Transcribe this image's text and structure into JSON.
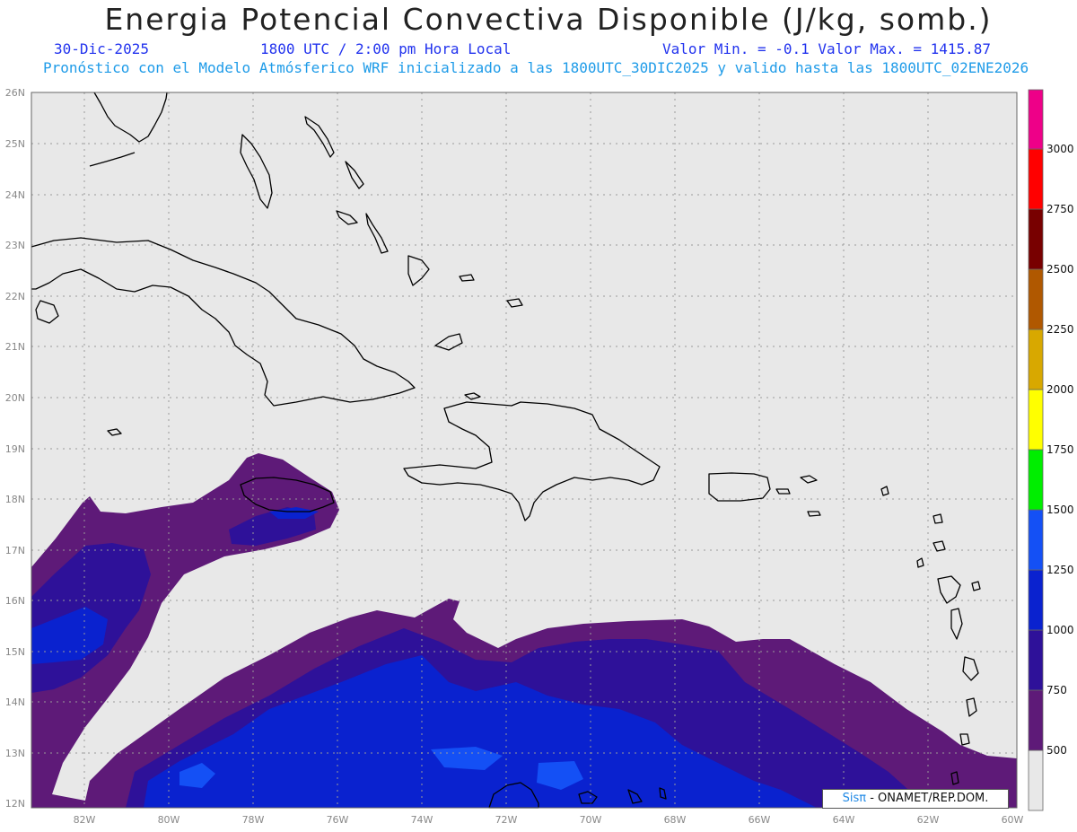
{
  "header": {
    "title": "Energia Potencial Convectiva Disponible (J/kg, somb.)",
    "date": "30-Dic-2025",
    "time": "1800 UTC / 2:00 pm Hora Local",
    "minmax": "Valor Min. = -0.1  Valor Max. = 1415.87",
    "forecast": "Pronóstico con el Modelo Atmósferico WRF inicializado a las 1800UTC_30DIC2025 y valido hasta las  1800UTC_02ENE2026"
  },
  "map": {
    "lat_ticks": [
      "26N",
      "25N",
      "24N",
      "23N",
      "22N",
      "21N",
      "20N",
      "19N",
      "18N",
      "17N",
      "16N",
      "15N",
      "14N",
      "13N",
      "12N"
    ],
    "lon_ticks": [
      "82W",
      "80W",
      "78W",
      "76W",
      "74W",
      "72W",
      "70W",
      "68W",
      "66W",
      "64W",
      "62W",
      "60W"
    ],
    "background_color": "#e8e8e8",
    "gridlines": true
  },
  "legend": {
    "levels": [
      "500",
      "750",
      "1000",
      "1250",
      "1500",
      "1750",
      "2000",
      "2250",
      "2500",
      "2750",
      "3000"
    ],
    "colors": [
      "#e8e8e8",
      "#5e1a78",
      "#2e1199",
      "#0a22cf",
      "#1450f5",
      "#00ee00",
      "#ffff00",
      "#d8a800",
      "#b05800",
      "#780000",
      "#ff0000",
      "#ee0088"
    ]
  },
  "credit": {
    "sis": "Sisπ",
    "text": " - ONAMET/REP.DOM."
  }
}
